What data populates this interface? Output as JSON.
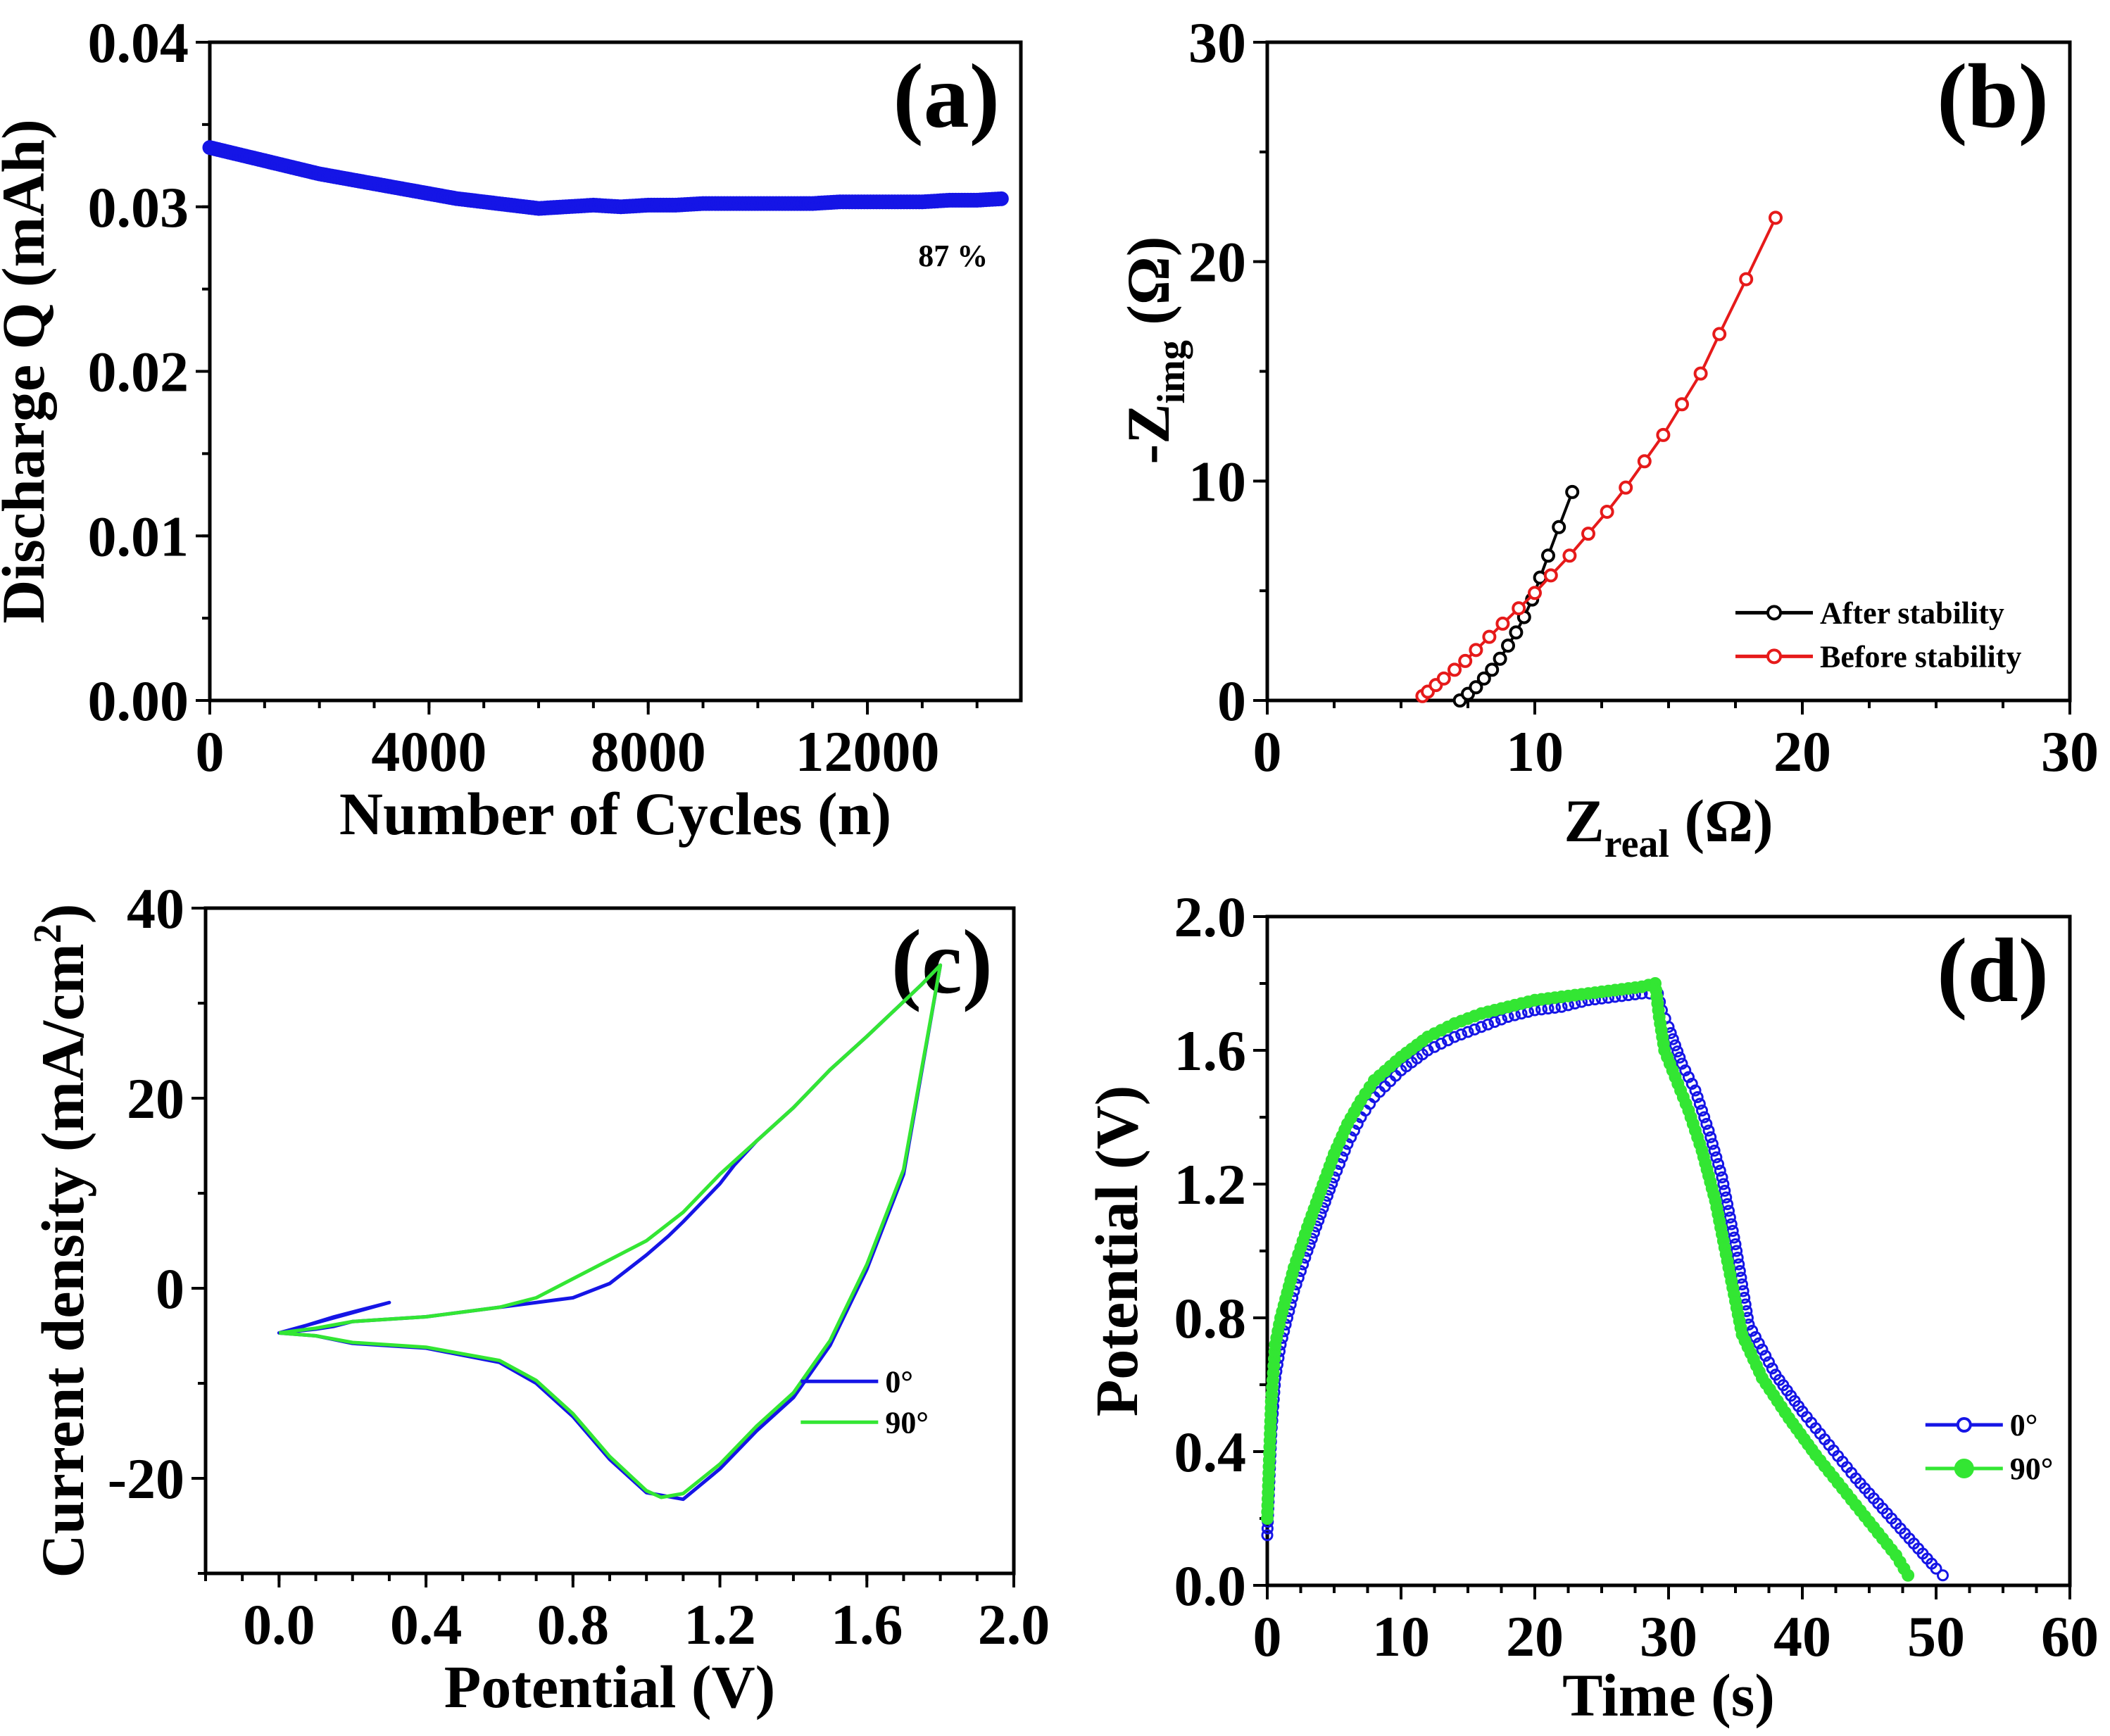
{
  "chart_data": [
    {
      "id": "a",
      "type": "scatter",
      "panel_label": "(a)",
      "xlabel": "Number of Cycles (n)",
      "ylabel": "Discharge Q (mAh)",
      "xlim": [
        0,
        14800
      ],
      "ylim": [
        0,
        0.04
      ],
      "xticks": [
        0,
        4000,
        8000,
        12000
      ],
      "yticks": [
        0.0,
        0.01,
        0.02,
        0.03,
        0.04
      ],
      "ytick_labels": [
        "0.00",
        "0.01",
        "0.02",
        "0.03",
        "0.04"
      ],
      "xtick_labels": [
        "0",
        "4000",
        "8000",
        "12000"
      ],
      "annotation": "87 %",
      "series": [
        {
          "name": "Discharge Q",
          "color": "#1515e6",
          "x": [
            0,
            500,
            1000,
            1500,
            2000,
            2500,
            3000,
            3500,
            4000,
            4500,
            5000,
            5500,
            6000,
            6500,
            7000,
            7500,
            8000,
            8500,
            9000,
            9500,
            10000,
            10500,
            11000,
            11500,
            12000,
            12500,
            13000,
            13500,
            14000,
            14500
          ],
          "y": [
            0.0336,
            0.0332,
            0.0328,
            0.0324,
            0.032,
            0.0317,
            0.0314,
            0.0311,
            0.0308,
            0.0305,
            0.0303,
            0.0301,
            0.0299,
            0.03,
            0.0301,
            0.03,
            0.0301,
            0.0301,
            0.0302,
            0.0302,
            0.0302,
            0.0302,
            0.0302,
            0.0303,
            0.0303,
            0.0303,
            0.0303,
            0.0304,
            0.0304,
            0.0305
          ]
        }
      ]
    },
    {
      "id": "b",
      "type": "line",
      "panel_label": "(b)",
      "xlabel_main": "Z",
      "xlabel_sub": "real",
      "xlabel_unit": " (Ω)",
      "ylabel_main": "-Z",
      "ylabel_sub": "img",
      "ylabel_unit": " (Ω)",
      "xlim": [
        0,
        30
      ],
      "ylim": [
        0,
        30
      ],
      "xticks": [
        0,
        10,
        20,
        30
      ],
      "yticks": [
        0,
        10,
        20,
        30
      ],
      "xtick_labels": [
        "0",
        "10",
        "20",
        "30"
      ],
      "ytick_labels": [
        "0",
        "10",
        "20",
        "30"
      ],
      "legend": [
        "After stability",
        "Before stability"
      ],
      "series": [
        {
          "name": "After stability",
          "color": "#000000",
          "x": [
            7.2,
            7.5,
            7.8,
            8.1,
            8.4,
            8.7,
            9.0,
            9.3,
            9.6,
            9.9,
            10.2,
            10.5,
            10.9,
            11.4
          ],
          "y": [
            0.0,
            0.3,
            0.6,
            1.0,
            1.4,
            1.9,
            2.5,
            3.1,
            3.8,
            4.6,
            5.6,
            6.6,
            7.9,
            9.5
          ]
        },
        {
          "name": "Before stability",
          "color": "#e61a1a",
          "x": [
            5.8,
            6.0,
            6.3,
            6.6,
            7.0,
            7.4,
            7.8,
            8.3,
            8.8,
            9.4,
            10.0,
            10.6,
            11.3,
            12.0,
            12.7,
            13.4,
            14.1,
            14.8,
            15.5,
            16.2,
            16.9,
            17.9,
            19.0
          ],
          "y": [
            0.2,
            0.4,
            0.7,
            1.0,
            1.4,
            1.8,
            2.3,
            2.9,
            3.5,
            4.2,
            4.9,
            5.7,
            6.6,
            7.6,
            8.6,
            9.7,
            10.9,
            12.1,
            13.5,
            14.9,
            16.7,
            19.2,
            22.0
          ]
        }
      ]
    },
    {
      "id": "c",
      "type": "line",
      "panel_label": "(c)",
      "xlabel": "Potential (V)",
      "ylabel": "Current density (mA/cm",
      "ylabel_sup": "2",
      "ylabel_close": ")",
      "xlim": [
        -0.2,
        2.0
      ],
      "ylim": [
        -30,
        40
      ],
      "xticks": [
        0.0,
        0.4,
        0.8,
        1.2,
        1.6,
        2.0
      ],
      "yticks": [
        -20,
        0,
        20,
        40
      ],
      "xtick_labels": [
        "0.0",
        "0.4",
        "0.8",
        "1.2",
        "1.6",
        "2.0"
      ],
      "ytick_labels": [
        "-20",
        "0",
        "20",
        "40"
      ],
      "legend": [
        "0°",
        "90°"
      ],
      "series": [
        {
          "name": "0°",
          "color": "#1515e6",
          "x": [
            0.0,
            0.1,
            0.2,
            0.4,
            0.6,
            0.7,
            0.8,
            0.9,
            1.0,
            1.1,
            1.2,
            1.3,
            1.4,
            1.5,
            1.6,
            1.7,
            1.8,
            1.75,
            1.6,
            1.5,
            1.4,
            1.3,
            1.24,
            1.2,
            1.15,
            1.1,
            1.06,
            1.0,
            0.9,
            0.8,
            0.7,
            0.6,
            0.4,
            0.2,
            0.15,
            0.1,
            0.0,
            0.05,
            0.15,
            0.3,
            0.0
          ],
          "y": [
            -4.7,
            -5.0,
            -5.8,
            -6.3,
            -7.8,
            -10.0,
            -13.5,
            -18.0,
            -21.5,
            -22.2,
            -19.0,
            -15.0,
            -11.5,
            -6.0,
            2.0,
            12.0,
            34.0,
            32.0,
            26.5,
            23.0,
            19.0,
            15.5,
            13.0,
            11.0,
            9.0,
            7.0,
            5.5,
            3.5,
            0.5,
            -1.0,
            -1.5,
            -2.0,
            -3.0,
            -3.5,
            -4.0,
            -4.3,
            -4.7,
            -4.2,
            -3.0,
            -1.5,
            -4.7
          ]
        },
        {
          "name": "90°",
          "color": "#33e633",
          "x": [
            0.0,
            0.1,
            0.2,
            0.4,
            0.6,
            0.7,
            0.8,
            0.9,
            1.0,
            1.04,
            1.1,
            1.2,
            1.3,
            1.4,
            1.5,
            1.6,
            1.7,
            1.8,
            1.75,
            1.6,
            1.5,
            1.4,
            1.3,
            1.2,
            1.1,
            1.0,
            0.9,
            0.8,
            0.7,
            0.6,
            0.4,
            0.2,
            0.1,
            0.0
          ],
          "y": [
            -4.7,
            -5.0,
            -5.7,
            -6.2,
            -7.6,
            -9.7,
            -13.2,
            -17.7,
            -21.3,
            -22.0,
            -21.6,
            -18.5,
            -14.5,
            -11.0,
            -5.5,
            2.5,
            12.5,
            34.0,
            32.0,
            26.5,
            23.0,
            19.0,
            15.5,
            12.0,
            8.0,
            5.0,
            3.0,
            1.0,
            -1.0,
            -2.0,
            -3.0,
            -3.5,
            -4.2,
            -4.7
          ]
        }
      ]
    },
    {
      "id": "d",
      "type": "scatter",
      "panel_label": "(d)",
      "xlabel": "Time (s)",
      "ylabel": "Potential (V)",
      "xlim": [
        0,
        60
      ],
      "ylim": [
        0,
        2.0
      ],
      "xticks": [
        0,
        10,
        20,
        30,
        40,
        50,
        60
      ],
      "yticks": [
        0.0,
        0.4,
        0.8,
        1.2,
        1.6,
        2.0
      ],
      "xtick_labels": [
        "0",
        "10",
        "20",
        "30",
        "40",
        "50",
        "60"
      ],
      "ytick_labels": [
        "0.0",
        "0.4",
        "0.8",
        "1.2",
        "1.6",
        "2.0"
      ],
      "legend": [
        "0°",
        "90°"
      ],
      "series": [
        {
          "name": "0°",
          "color": "#1515e6",
          "x": [
            0.0,
            0.3,
            0.6,
            1.0,
            2.0,
            3.0,
            4.0,
            5.0,
            6.0,
            7.0,
            8.0,
            10.0,
            12.0,
            14.0,
            16.0,
            18.0,
            20.0,
            22.0,
            24.0,
            26.0,
            28.0,
            29.2,
            29.5,
            30.0,
            31.0,
            32.0,
            33.0,
            34.0,
            35.0,
            36.0,
            38.0,
            40.0,
            42.0,
            44.0,
            46.0,
            48.0,
            50.0,
            51.0
          ],
          "y": [
            0.15,
            0.45,
            0.62,
            0.72,
            0.88,
            1.0,
            1.11,
            1.22,
            1.32,
            1.4,
            1.46,
            1.54,
            1.6,
            1.64,
            1.67,
            1.7,
            1.72,
            1.73,
            1.75,
            1.76,
            1.77,
            1.77,
            1.72,
            1.67,
            1.56,
            1.48,
            1.36,
            1.22,
            1.02,
            0.78,
            0.63,
            0.52,
            0.42,
            0.32,
            0.23,
            0.14,
            0.05,
            0.01
          ]
        },
        {
          "name": "90°",
          "color": "#33e633",
          "x": [
            0.0,
            0.3,
            0.6,
            1.0,
            2.0,
            3.0,
            4.0,
            5.0,
            6.0,
            7.0,
            8.0,
            10.0,
            12.0,
            14.0,
            16.0,
            18.0,
            20.0,
            22.0,
            24.0,
            26.0,
            28.0,
            29.0,
            29.3,
            29.7,
            30.5,
            31.5,
            32.5,
            33.5,
            34.5,
            35.5,
            37.0,
            39.0,
            41.0,
            43.0,
            45.0,
            47.0,
            48.2
          ],
          "y": [
            0.2,
            0.55,
            0.72,
            0.8,
            0.95,
            1.07,
            1.18,
            1.29,
            1.38,
            1.45,
            1.51,
            1.58,
            1.64,
            1.68,
            1.71,
            1.73,
            1.75,
            1.76,
            1.77,
            1.78,
            1.79,
            1.8,
            1.7,
            1.6,
            1.52,
            1.42,
            1.3,
            1.15,
            0.95,
            0.75,
            0.62,
            0.5,
            0.39,
            0.29,
            0.19,
            0.09,
            0.01
          ]
        }
      ]
    }
  ]
}
